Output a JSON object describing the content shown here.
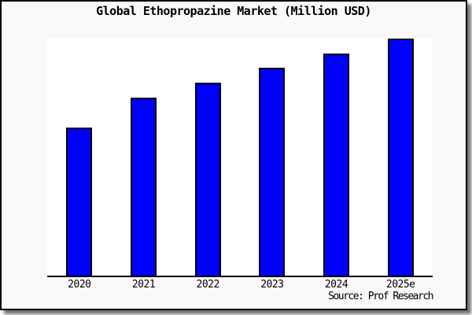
{
  "chart_data": {
    "type": "bar",
    "title": "Global Ethopropazine Market (Million USD)",
    "categories": [
      "2020",
      "2021",
      "2022",
      "2023",
      "2024",
      "2025e"
    ],
    "values": [
      62.6,
      75.1,
      81.4,
      87.7,
      93.7,
      100
    ],
    "values_unit": "relative bar height, tallest bar (2025e) = 100; no y-axis ticks or gridlines are shown",
    "xlabel": "",
    "ylabel": "",
    "ylim": [
      0,
      100
    ],
    "grid": false,
    "legend": false,
    "bar_color": "#0000ff",
    "bar_border_color": "#000000",
    "axis_color": "#000000",
    "plot_background": "#ffffff",
    "figure_background": "#f9f9f9",
    "source_label": "Source: Prof Research"
  }
}
